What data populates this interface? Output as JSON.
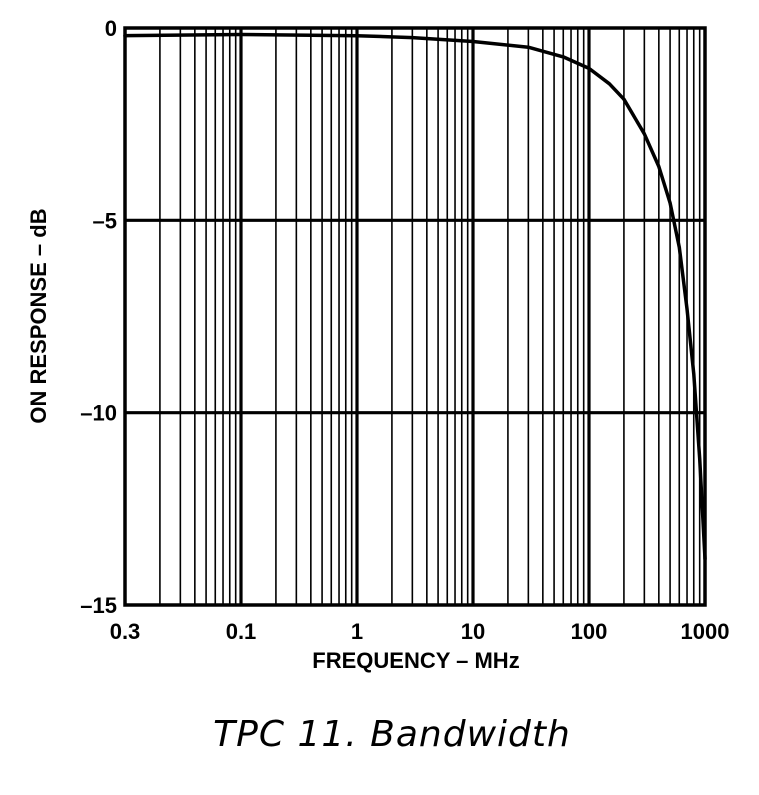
{
  "chart_data": {
    "type": "line",
    "title": "",
    "xlabel": "FREQUENCY – MHz",
    "ylabel": "ON RESPONSE – dB",
    "x_scale": "log",
    "xlim": [
      0.01,
      1000
    ],
    "ylim": [
      -15,
      0
    ],
    "x_tick_labels": [
      "0.3",
      "0.1",
      "1",
      "10",
      "100",
      "1000"
    ],
    "y_tick_labels": [
      "0",
      "–5",
      "–10",
      "–15"
    ],
    "y_ticks": [
      0,
      -5,
      -10,
      -15
    ],
    "grid": true,
    "series": [
      {
        "x": [
          0.01,
          0.1,
          1,
          3,
          10,
          30,
          60,
          100,
          150,
          200,
          300,
          400,
          500,
          600,
          700,
          800,
          900,
          1000
        ],
        "y": [
          -0.2,
          -0.17,
          -0.2,
          -0.25,
          -0.35,
          -0.5,
          -0.75,
          -1.05,
          -1.45,
          -1.85,
          -2.75,
          -3.6,
          -4.55,
          -5.7,
          -7.3,
          -9.0,
          -11.2,
          -13.8
        ]
      }
    ]
  },
  "caption": "TPC 11.  Bandwidth"
}
